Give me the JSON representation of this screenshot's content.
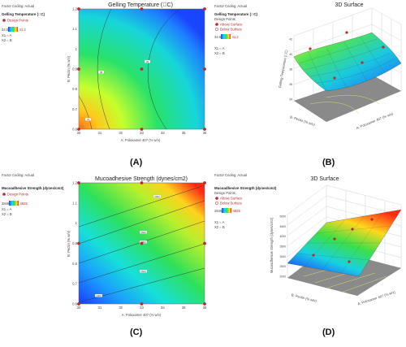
{
  "panel_labels": [
    "(A)",
    "(B)",
    "(C)",
    "(D)"
  ],
  "chart_data": [
    {
      "type": "contour",
      "panel": "(A)",
      "title": "Gelling Temperature  (\u0000C)",
      "xlabel": "A: Poloxamer 407 (% w/v)",
      "ylabel": "B: Pectin (% w/v)",
      "x_ticks": [
        "30",
        "31",
        "32",
        "33",
        "34",
        "35",
        "36"
      ],
      "y_ticks": [
        "0.6",
        "0.7",
        "0.8",
        "0.9",
        "1",
        "1.1",
        "1.2"
      ],
      "xlim": [
        30,
        36
      ],
      "ylim": [
        0.6,
        1.2
      ],
      "contour_labels": [
        "38",
        "41",
        "36"
      ],
      "design_points": [
        [
          30,
          0.6
        ],
        [
          33,
          0.6
        ],
        [
          36,
          0.6
        ],
        [
          30,
          0.9
        ],
        [
          33,
          0.9
        ],
        [
          36,
          0.9
        ],
        [
          30,
          1.2
        ],
        [
          33,
          1.2
        ],
        [
          36,
          1.2
        ]
      ],
      "legend": {
        "coding": "Factor Coding: Actual",
        "response": "Gelling Temperature  (\u0000C)",
        "design_points": "Design Points",
        "range_low": "34.5",
        "range_high": "41.2",
        "x1": "X1 = A",
        "x2": "X2 = B"
      }
    },
    {
      "type": "surface3d",
      "panel": "(B)",
      "title": "3D Surface",
      "xlabel": "A: Poloxamer 407 (% w/v)",
      "ylabel": "B: Pectin (% w/v)",
      "zlabel": "Gelling Temperature  (\u0000C)",
      "z_ticks": [
        "34",
        "36",
        "38",
        "40",
        "42"
      ],
      "legend": {
        "coding": "Factor Coding: Actual",
        "response": "Gelling Temperature  (\u0000C)",
        "design_points": "Design Points",
        "above": "Above Surface",
        "below": "Below Surface",
        "range_low": "34.5",
        "range_high": "41.2",
        "x1": "X1 = A",
        "x2": "X2 = B"
      }
    },
    {
      "type": "contour",
      "panel": "(C)",
      "title": "Mucoadhesive Strength (dynes/cm2)",
      "xlabel": "A: Poloxamer 407 (% w/v)",
      "ylabel": "B: Pectin (% w/v)",
      "x_ticks": [
        "30",
        "31",
        "32",
        "33",
        "34",
        "35",
        "36"
      ],
      "y_ticks": [
        "0.6",
        "0.7",
        "0.8",
        "0.9",
        "1",
        "1.1",
        "1.2"
      ],
      "xlim": [
        30,
        36
      ],
      "ylim": [
        0.6,
        1.2
      ],
      "contour_labels": [
        "3000",
        "3500",
        "4000",
        "2500",
        "2000"
      ],
      "design_points": [
        [
          30,
          0.6
        ],
        [
          33,
          0.6
        ],
        [
          36,
          0.6
        ],
        [
          30,
          0.9
        ],
        [
          33,
          0.9
        ],
        [
          36,
          0.9
        ],
        [
          30,
          1.2
        ],
        [
          33,
          1.2
        ],
        [
          36,
          1.2
        ]
      ],
      "legend": {
        "coding": "Factor Coding: Actual",
        "response": "Mucoadhesive Strength (dynes/cm2)",
        "design_points": "Design Points",
        "range_low": "2846",
        "range_high": "4825",
        "x1": "X1 = A",
        "x2": "X2 = B"
      }
    },
    {
      "type": "surface3d",
      "panel": "(D)",
      "title": "3D Surface",
      "xlabel": "A: Poloxamer 407 (% w/v)",
      "ylabel": "B: Pectin (% w/v)",
      "zlabel": "Mucoadhesive Strength (dynes/cm2)",
      "z_ticks": [
        "2000",
        "2500",
        "3000",
        "3500",
        "4000",
        "4500",
        "5000"
      ],
      "legend": {
        "coding": "Factor Coding: Actual",
        "response": "Mucoadhesive Strength (dynes/cm2)",
        "design_points": "Design Points",
        "above": "Above Surface",
        "below": "Below Surface",
        "range_low": "2846",
        "range_high": "4825",
        "x1": "X1 = A",
        "x2": "X2 = B"
      }
    }
  ]
}
